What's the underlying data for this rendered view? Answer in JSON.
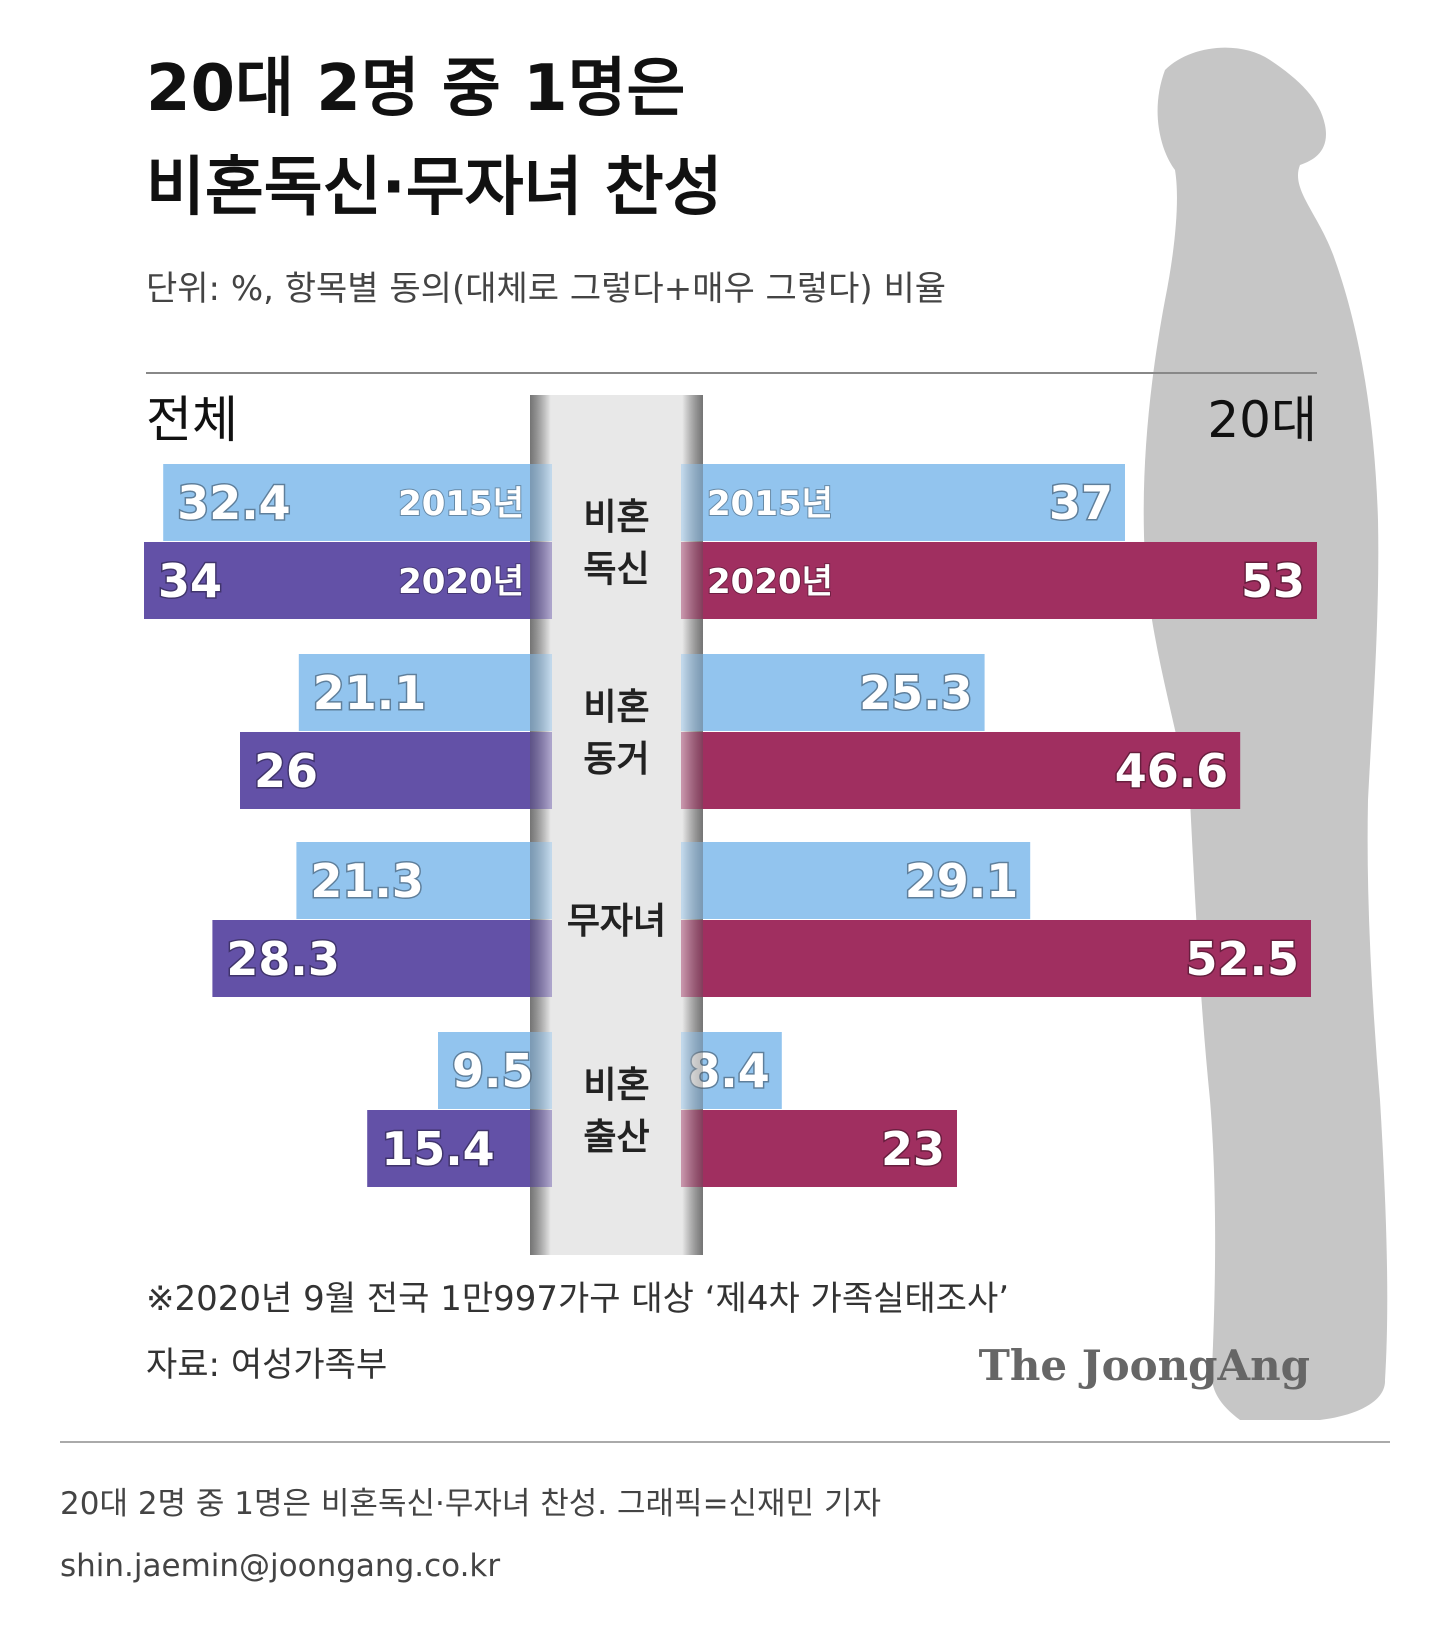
{
  "chart_data": {
    "type": "butterfly",
    "title": [
      "20대 2명 중 1명은",
      "비혼독신·무자녀 찬성"
    ],
    "subtitle": "단위: %, 항목별 동의(대체로 그렇다+매우 그렇다) 비율",
    "categories": [
      [
        "비혼",
        "독신"
      ],
      [
        "비혼",
        "동거"
      ],
      [
        "무자녀"
      ],
      [
        "비혼",
        "출산"
      ]
    ],
    "panels": [
      {
        "name": "전체",
        "series": [
          {
            "name": "2015년",
            "color": "#92c4ee",
            "values": [
              32.4,
              21.1,
              21.3,
              9.5
            ]
          },
          {
            "name": "2020년",
            "color": "#6351a7",
            "values": [
              34,
              26,
              28.3,
              15.4
            ]
          }
        ]
      },
      {
        "name": "20대",
        "series": [
          {
            "name": "2015년",
            "color": "#92c4ee",
            "values": [
              37,
              25.3,
              29.1,
              8.4
            ]
          },
          {
            "name": "2020년",
            "color": "#a02f60",
            "values": [
              53,
              46.6,
              52.5,
              23
            ]
          }
        ]
      }
    ],
    "note": "※2020년 9월 전국 1만997가구 대상 ‘제4차 가족실태조사’",
    "source": "자료: 여성가족부"
  },
  "logo": "The JoongAng",
  "footer": {
    "caption": "20대 2명 중 1명은 비혼독신·무자녀 찬성. 그래픽=신재민 기자",
    "email": "shin.jaemin@joongang.co.kr"
  }
}
